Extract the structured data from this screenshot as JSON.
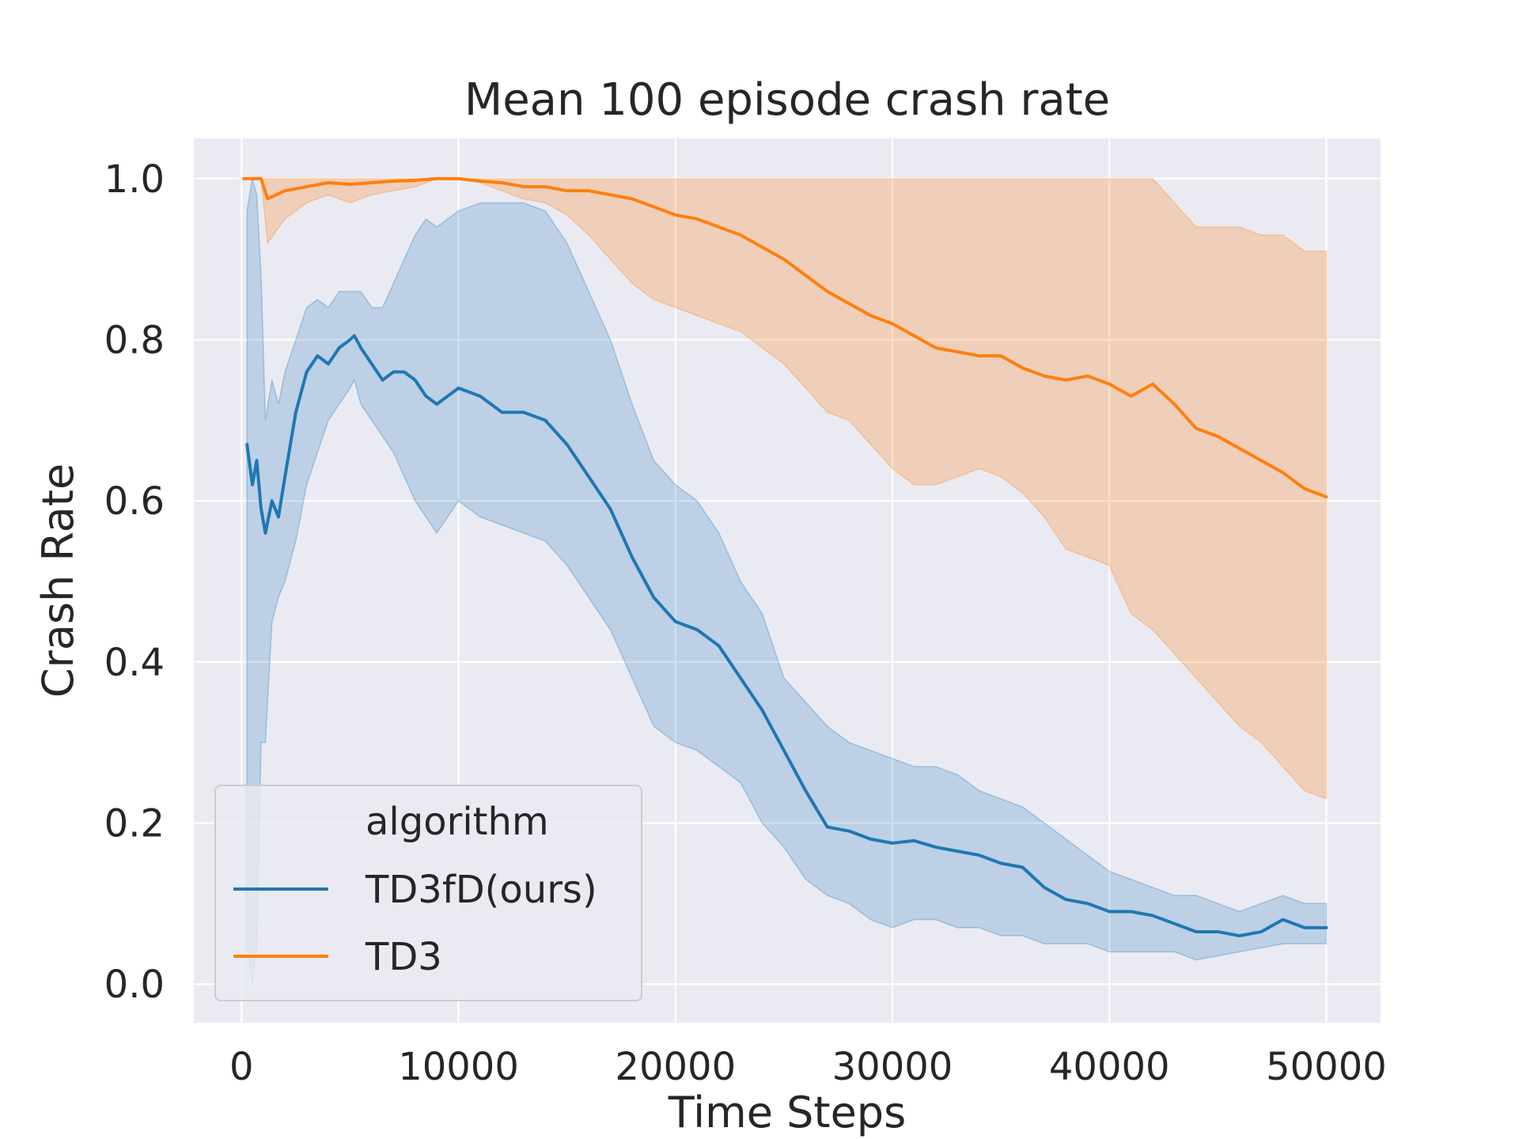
{
  "chart_data": {
    "type": "line",
    "title": "Mean 100 episode crash rate",
    "xlabel": "Time Steps",
    "ylabel": "Crash Rate",
    "xlim": [
      -2200,
      52500
    ],
    "ylim": [
      -0.048,
      1.05
    ],
    "xticks": [
      0,
      10000,
      20000,
      30000,
      40000,
      50000
    ],
    "xtick_labels": [
      "0",
      "10000",
      "20000",
      "30000",
      "40000",
      "50000"
    ],
    "yticks": [
      0.0,
      0.2,
      0.4,
      0.6,
      0.8,
      1.0
    ],
    "ytick_labels": [
      "0.0",
      "0.2",
      "0.4",
      "0.6",
      "0.8",
      "1.0"
    ],
    "grid": true,
    "background": "#eaeaf2",
    "legend": {
      "title": "algorithm",
      "placement": "lower-left",
      "entries": [
        "TD3fD(ours)",
        "TD3"
      ]
    },
    "series": [
      {
        "name": "TD3fD(ours)",
        "color": "#1f77b4",
        "band_color": "#1f77b4",
        "x": [
          250,
          500,
          700,
          900,
          1100,
          1400,
          1700,
          2000,
          2500,
          3000,
          3500,
          4000,
          4500,
          5000,
          5200,
          5500,
          6000,
          6500,
          7000,
          7500,
          8000,
          8500,
          9000,
          9500,
          10000,
          11000,
          12000,
          13000,
          14000,
          15000,
          16000,
          17000,
          18000,
          19000,
          20000,
          21000,
          22000,
          23000,
          24000,
          25000,
          26000,
          27000,
          28000,
          29000,
          30000,
          31000,
          32000,
          33000,
          34000,
          35000,
          36000,
          37000,
          38000,
          39000,
          40000,
          41000,
          42000,
          43000,
          44000,
          45000,
          46000,
          47000,
          48000,
          49000,
          50000
        ],
        "values": [
          0.67,
          0.62,
          0.65,
          0.59,
          0.56,
          0.6,
          0.58,
          0.63,
          0.71,
          0.76,
          0.78,
          0.77,
          0.79,
          0.8,
          0.805,
          0.79,
          0.77,
          0.75,
          0.76,
          0.76,
          0.75,
          0.73,
          0.72,
          0.73,
          0.74,
          0.73,
          0.71,
          0.71,
          0.7,
          0.67,
          0.63,
          0.59,
          0.53,
          0.48,
          0.45,
          0.44,
          0.42,
          0.38,
          0.34,
          0.29,
          0.24,
          0.195,
          0.19,
          0.18,
          0.175,
          0.178,
          0.17,
          0.165,
          0.16,
          0.15,
          0.145,
          0.12,
          0.105,
          0.1,
          0.09,
          0.09,
          0.085,
          0.075,
          0.065,
          0.065,
          0.06,
          0.065,
          0.08,
          0.07,
          0.07
        ],
        "lower": [
          0.05,
          0.0,
          0.05,
          0.3,
          0.3,
          0.45,
          0.48,
          0.5,
          0.55,
          0.62,
          0.66,
          0.7,
          0.72,
          0.74,
          0.75,
          0.72,
          0.7,
          0.68,
          0.66,
          0.63,
          0.6,
          0.58,
          0.56,
          0.58,
          0.6,
          0.58,
          0.57,
          0.56,
          0.55,
          0.52,
          0.48,
          0.44,
          0.38,
          0.32,
          0.3,
          0.29,
          0.27,
          0.25,
          0.2,
          0.17,
          0.13,
          0.11,
          0.1,
          0.08,
          0.07,
          0.08,
          0.08,
          0.07,
          0.07,
          0.06,
          0.06,
          0.05,
          0.05,
          0.05,
          0.04,
          0.04,
          0.04,
          0.04,
          0.03,
          0.035,
          0.04,
          0.045,
          0.05,
          0.05,
          0.05
        ],
        "upper": [
          0.96,
          1.0,
          0.98,
          0.88,
          0.7,
          0.75,
          0.72,
          0.76,
          0.8,
          0.84,
          0.85,
          0.84,
          0.86,
          0.86,
          0.86,
          0.86,
          0.84,
          0.84,
          0.87,
          0.9,
          0.93,
          0.95,
          0.94,
          0.95,
          0.96,
          0.97,
          0.97,
          0.97,
          0.96,
          0.92,
          0.86,
          0.8,
          0.72,
          0.65,
          0.62,
          0.6,
          0.56,
          0.5,
          0.46,
          0.38,
          0.35,
          0.32,
          0.3,
          0.29,
          0.28,
          0.27,
          0.27,
          0.26,
          0.24,
          0.23,
          0.22,
          0.2,
          0.18,
          0.16,
          0.14,
          0.13,
          0.12,
          0.11,
          0.11,
          0.1,
          0.09,
          0.1,
          0.11,
          0.1,
          0.1
        ]
      },
      {
        "name": "TD3",
        "color": "#ff7f0e",
        "band_color": "#ff7f0e",
        "x": [
          100,
          900,
          1200,
          2000,
          3000,
          4000,
          5000,
          6000,
          7000,
          8000,
          9000,
          10000,
          11000,
          12000,
          13000,
          14000,
          15000,
          16000,
          17000,
          18000,
          19000,
          20000,
          21000,
          22000,
          23000,
          24000,
          25000,
          26000,
          27000,
          28000,
          29000,
          30000,
          31000,
          32000,
          33000,
          34000,
          35000,
          36000,
          37000,
          38000,
          39000,
          40000,
          41000,
          42000,
          43000,
          44000,
          45000,
          46000,
          47000,
          48000,
          49000,
          50000
        ],
        "values": [
          1.0,
          1.0,
          0.975,
          0.985,
          0.99,
          0.995,
          0.993,
          0.995,
          0.997,
          0.998,
          1.0,
          1.0,
          0.997,
          0.995,
          0.99,
          0.99,
          0.985,
          0.985,
          0.98,
          0.975,
          0.965,
          0.955,
          0.95,
          0.94,
          0.93,
          0.915,
          0.9,
          0.88,
          0.86,
          0.845,
          0.83,
          0.82,
          0.805,
          0.79,
          0.785,
          0.78,
          0.78,
          0.765,
          0.755,
          0.75,
          0.755,
          0.745,
          0.73,
          0.745,
          0.72,
          0.69,
          0.68,
          0.665,
          0.65,
          0.635,
          0.615,
          0.605
        ],
        "lower": [
          1.0,
          1.0,
          0.92,
          0.95,
          0.97,
          0.98,
          0.97,
          0.98,
          0.985,
          0.99,
          1.0,
          1.0,
          0.995,
          0.985,
          0.975,
          0.97,
          0.955,
          0.93,
          0.9,
          0.87,
          0.85,
          0.84,
          0.83,
          0.82,
          0.81,
          0.79,
          0.77,
          0.74,
          0.71,
          0.7,
          0.67,
          0.64,
          0.62,
          0.62,
          0.63,
          0.64,
          0.63,
          0.61,
          0.58,
          0.54,
          0.53,
          0.52,
          0.46,
          0.44,
          0.41,
          0.38,
          0.35,
          0.32,
          0.3,
          0.27,
          0.24,
          0.23
        ],
        "upper": [
          1.0,
          1.0,
          1.0,
          1.0,
          1.0,
          1.0,
          1.0,
          1.0,
          1.0,
          1.0,
          1.0,
          1.0,
          1.0,
          1.0,
          1.0,
          1.0,
          1.0,
          1.0,
          1.0,
          1.0,
          1.0,
          1.0,
          1.0,
          1.0,
          1.0,
          1.0,
          1.0,
          1.0,
          1.0,
          1.0,
          1.0,
          1.0,
          1.0,
          1.0,
          1.0,
          1.0,
          1.0,
          1.0,
          1.0,
          1.0,
          1.0,
          1.0,
          1.0,
          1.0,
          0.97,
          0.94,
          0.94,
          0.94,
          0.93,
          0.93,
          0.91,
          0.91
        ]
      }
    ]
  }
}
